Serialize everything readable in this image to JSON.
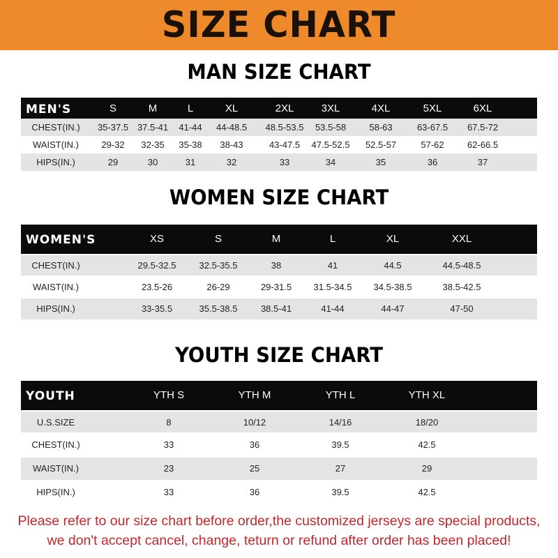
{
  "banner": {
    "title": "SIZE CHART",
    "background": "#ef8a2a"
  },
  "men": {
    "title": "MAN SIZE CHART",
    "header": [
      "MEN'S",
      "S",
      "M",
      "L",
      "XL",
      "2XL",
      "3XL",
      "4XL",
      "5XL",
      "6XL"
    ],
    "rows": [
      [
        "CHEST(IN.)",
        "35-37.5",
        "37.5-41",
        "41-44",
        "44-48.5",
        "48.5-53.5",
        "53.5-58",
        "58-63",
        "63-67.5",
        "67.5-72"
      ],
      [
        "WAIST(IN.)",
        "29-32",
        "32-35",
        "35-38",
        "38-43",
        "43-47.5",
        "47.5-52.5",
        "52.5-57",
        "57-62",
        "62-66.5"
      ],
      [
        "HIPS(IN.)",
        "29",
        "30",
        "31",
        "32",
        "33",
        "34",
        "35",
        "36",
        "37"
      ]
    ]
  },
  "women": {
    "title": "WOMEN SIZE CHART",
    "header": [
      "WOMEN'S",
      "XS",
      "S",
      "M",
      "L",
      "XL",
      "XXL"
    ],
    "rows": [
      [
        "CHEST(IN.)",
        "29.5-32.5",
        "32.5-35.5",
        "38",
        "41",
        "44.5",
        "44.5-48.5"
      ],
      [
        "WAIST(IN.)",
        "23.5-26",
        "26-29",
        "29-31.5",
        "31.5-34.5",
        "34.5-38.5",
        "38.5-42.5"
      ],
      [
        "HIPS(IN.)",
        "33-35.5",
        "35.5-38.5",
        "38.5-41",
        "41-44",
        "44-47",
        "47-50"
      ]
    ]
  },
  "youth": {
    "title": "YOUTH SIZE CHART",
    "header": [
      "YOUTH",
      "YTH S",
      "YTH M",
      "YTH L",
      "YTH XL"
    ],
    "rows": [
      [
        "U.S.SIZE",
        "8",
        "10/12",
        "14/16",
        "18/20"
      ],
      [
        "CHEST(IN.)",
        "33",
        "36",
        "39.5",
        "42.5"
      ],
      [
        "WAIST(IN.)",
        "23",
        "25",
        "27",
        "29"
      ],
      [
        "HIPS(IN.)",
        "33",
        "36",
        "39.5",
        "42.5"
      ]
    ]
  },
  "footer": {
    "line1": "Please refer to our size chart before order,the customized jerseys are special products,",
    "line2": "we don't accept cancel, change, teturn or refund after order has been placed!",
    "color": "#c3262b"
  }
}
